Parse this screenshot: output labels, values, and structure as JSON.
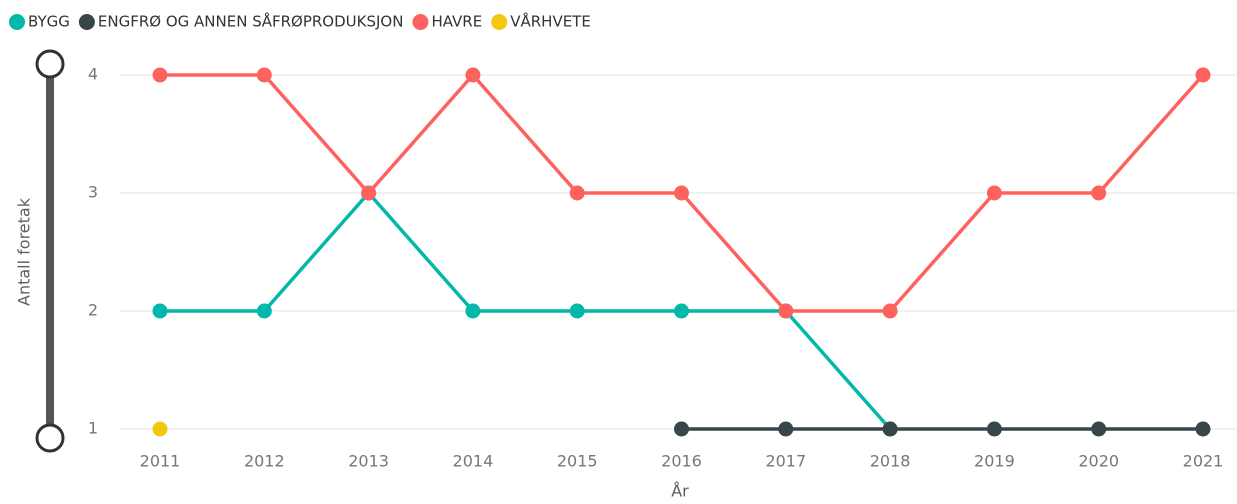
{
  "chart_data": {
    "type": "line",
    "x_label": "År",
    "y_label": "Antall foretak",
    "categories": [
      "2011",
      "2012",
      "2013",
      "2014",
      "2015",
      "2016",
      "2017",
      "2018",
      "2019",
      "2020",
      "2021"
    ],
    "series": [
      {
        "name": "BYGG",
        "color": "#01B8AA",
        "values": [
          2,
          2,
          3,
          2,
          2,
          2,
          2,
          1,
          null,
          null,
          null
        ]
      },
      {
        "name": "ENGFRØ OG ANNEN SÅFRØPRODUKSJON",
        "color": "#374649",
        "values": [
          null,
          null,
          null,
          null,
          null,
          1,
          1,
          1,
          1,
          1,
          1
        ]
      },
      {
        "name": "HAVRE",
        "color": "#FD625E",
        "values": [
          4,
          4,
          3,
          4,
          3,
          3,
          2,
          2,
          3,
          3,
          4
        ]
      },
      {
        "name": "VÅRHVETE",
        "color": "#F2C80F",
        "values": [
          1,
          null,
          null,
          null,
          null,
          null,
          null,
          null,
          null,
          null,
          null
        ]
      }
    ],
    "ylim": [
      1,
      4
    ],
    "yticks": [
      1,
      2,
      3,
      4
    ],
    "grid": true,
    "legend": "top"
  }
}
